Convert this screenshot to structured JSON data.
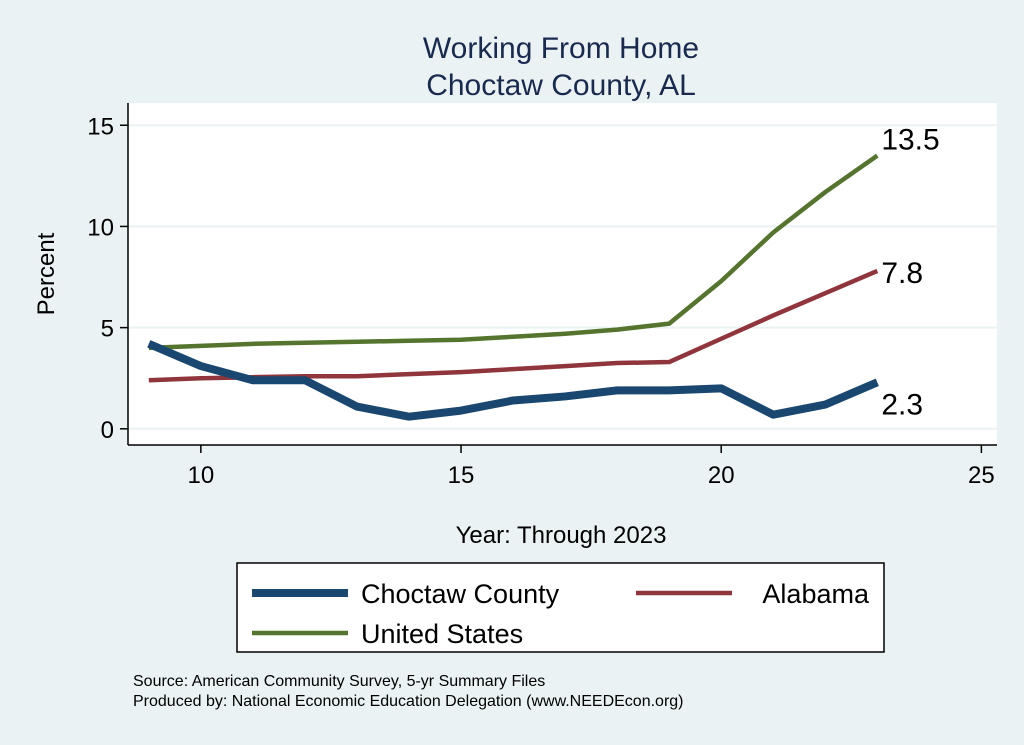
{
  "chart_data": {
    "type": "line",
    "title": "Working From Home",
    "subtitle": "Choctaw County, AL",
    "xlabel": "Year: Through 2023",
    "ylabel": "Percent",
    "xlim": [
      8.6,
      25.3
    ],
    "ylim": [
      -0.8,
      16.1
    ],
    "xticks": [
      10,
      15,
      20,
      25
    ],
    "yticks": [
      0,
      5,
      10,
      15
    ],
    "grid": true,
    "legend_placement": "bottom",
    "x": [
      9,
      10,
      11,
      12,
      13,
      14,
      15,
      16,
      17,
      18,
      19,
      20,
      21,
      22,
      23
    ],
    "series": [
      {
        "name": "Choctaw County",
        "color": "#1a476f",
        "values": [
          4.2,
          3.1,
          2.4,
          2.4,
          1.1,
          0.6,
          0.9,
          1.4,
          1.6,
          1.9,
          1.9,
          2.0,
          0.7,
          1.2,
          2.3
        ],
        "end_label": "2.3"
      },
      {
        "name": "Alabama",
        "color": "#90353b",
        "values": [
          2.4,
          2.5,
          2.55,
          2.6,
          2.6,
          2.7,
          2.8,
          2.95,
          3.1,
          3.25,
          3.3,
          4.45,
          5.6,
          6.7,
          7.8
        ],
        "end_label": "7.8"
      },
      {
        "name": "United States",
        "color": "#55752f",
        "values": [
          4.0,
          4.1,
          4.2,
          4.25,
          4.3,
          4.35,
          4.4,
          4.55,
          4.7,
          4.9,
          5.2,
          7.3,
          9.7,
          11.7,
          13.5
        ],
        "end_label": "13.5"
      }
    ]
  },
  "notes": {
    "source": "Source: American Community Survey, 5-yr Summary Files",
    "produced": "Produced by: National Economic Education Delegation (www.NEEDEcon.org)"
  }
}
